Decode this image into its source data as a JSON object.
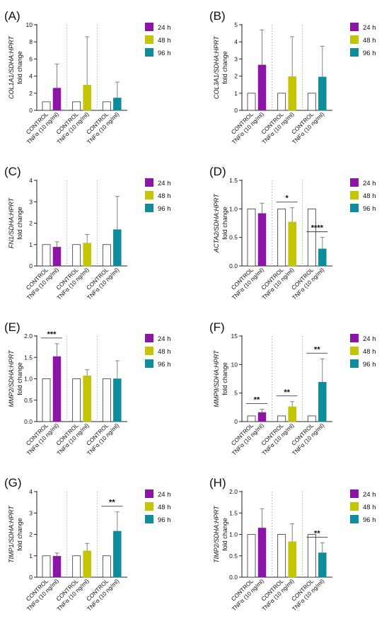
{
  "legend": [
    {
      "label": "24 h",
      "color": "#8b16a5"
    },
    {
      "label": "48 h",
      "color": "#c2c404"
    },
    {
      "label": "96 h",
      "color": "#0e8c9c"
    }
  ],
  "group_labels": [
    "CONTROL",
    "TNFα (10 ng/ml)"
  ],
  "colors": {
    "control_fill": "#ffffff",
    "bar_stroke": "#333333",
    "divider": "#b5b5b5"
  },
  "chart_data": [
    {
      "type": "bar",
      "panel_label": "(A)",
      "ylabel_gene": "COL1A1/SDHA:HPRT",
      "ylabel_unit": "fold change",
      "ylim": [
        0,
        10
      ],
      "yticks": [
        0,
        2,
        4,
        6,
        8,
        10
      ],
      "groups": [
        {
          "time": "24 h",
          "control": 1.0,
          "tnf": 2.6,
          "tnf_err": 2.8,
          "sig": ""
        },
        {
          "time": "48 h",
          "control": 1.0,
          "tnf": 2.95,
          "tnf_err": 5.65,
          "sig": ""
        },
        {
          "time": "96 h",
          "control": 1.0,
          "tnf": 1.45,
          "tnf_err": 1.85,
          "sig": ""
        }
      ]
    },
    {
      "type": "bar",
      "panel_label": "(B)",
      "ylabel_gene": "COL3A1/SDHA:HPRT",
      "ylabel_unit": "fold change",
      "ylim": [
        0,
        5
      ],
      "yticks": [
        0,
        1,
        2,
        3,
        4,
        5
      ],
      "groups": [
        {
          "time": "24 h",
          "control": 1.0,
          "tnf": 2.65,
          "tnf_err": 2.05,
          "sig": ""
        },
        {
          "time": "48 h",
          "control": 1.0,
          "tnf": 1.97,
          "tnf_err": 2.33,
          "sig": ""
        },
        {
          "time": "96 h",
          "control": 1.0,
          "tnf": 1.95,
          "tnf_err": 1.8,
          "sig": ""
        }
      ]
    },
    {
      "type": "bar",
      "panel_label": "(C)",
      "ylabel_gene": "FN1/SDHA:HPRT",
      "ylabel_unit": "fold change",
      "ylim": [
        0,
        4
      ],
      "yticks": [
        0,
        1,
        2,
        3,
        4
      ],
      "groups": [
        {
          "time": "24 h",
          "control": 1.0,
          "tnf": 0.88,
          "tnf_err": 0.25,
          "sig": ""
        },
        {
          "time": "48 h",
          "control": 1.0,
          "tnf": 1.07,
          "tnf_err": 0.4,
          "sig": ""
        },
        {
          "time": "96 h",
          "control": 1.0,
          "tnf": 1.7,
          "tnf_err": 1.55,
          "sig": ""
        }
      ]
    },
    {
      "type": "bar",
      "panel_label": "(D)",
      "ylabel_gene": "ACTA2/SDHA:HPRT",
      "ylabel_unit": "fold change",
      "ylim": [
        0,
        1.5
      ],
      "yticks": [
        "0.0",
        "0.5",
        "1.0",
        "1.5"
      ],
      "groups": [
        {
          "time": "24 h",
          "control": 1.0,
          "tnf": 0.92,
          "tnf_err": 0.18,
          "sig": ""
        },
        {
          "time": "48 h",
          "control": 1.0,
          "tnf": 0.77,
          "tnf_err": 0.25,
          "sig": "*"
        },
        {
          "time": "96 h",
          "control": 1.0,
          "tnf": 0.3,
          "tnf_err": 0.2,
          "sig": "****"
        }
      ]
    },
    {
      "type": "bar",
      "panel_label": "(E)",
      "ylabel_gene": "MMP2/SDHA:HPRT",
      "ylabel_unit": "fold change",
      "ylim": [
        0,
        2.0
      ],
      "yticks": [
        "0.0",
        "0.5",
        "1.0",
        "1.5",
        "2.0"
      ],
      "groups": [
        {
          "time": "24 h",
          "control": 1.0,
          "tnf": 1.52,
          "tnf_err": 0.3,
          "sig": "***"
        },
        {
          "time": "48 h",
          "control": 1.0,
          "tnf": 1.07,
          "tnf_err": 0.14,
          "sig": ""
        },
        {
          "time": "96 h",
          "control": 1.0,
          "tnf": 1.0,
          "tnf_err": 0.42,
          "sig": ""
        }
      ]
    },
    {
      "type": "bar",
      "panel_label": "(F)",
      "ylabel_gene": "MMP9/SDHA:HPRT",
      "ylabel_unit": "fold change",
      "ylim": [
        0,
        15
      ],
      "yticks": [
        0,
        5,
        10,
        15
      ],
      "groups": [
        {
          "time": "24 h",
          "control": 1.0,
          "tnf": 1.6,
          "tnf_err": 0.55,
          "sig": "**"
        },
        {
          "time": "48 h",
          "control": 1.0,
          "tnf": 2.6,
          "tnf_err": 0.9,
          "sig": "**"
        },
        {
          "time": "96 h",
          "control": 1.0,
          "tnf": 6.9,
          "tnf_err": 4.1,
          "sig": "**"
        }
      ]
    },
    {
      "type": "bar",
      "panel_label": "(G)",
      "ylabel_gene": "TIMP1/SDHA:HPRT",
      "ylabel_unit": "fold change",
      "ylim": [
        0,
        4
      ],
      "yticks": [
        0,
        1,
        2,
        3,
        4
      ],
      "groups": [
        {
          "time": "24 h",
          "control": 1.0,
          "tnf": 0.98,
          "tnf_err": 0.15,
          "sig": ""
        },
        {
          "time": "48 h",
          "control": 1.0,
          "tnf": 1.23,
          "tnf_err": 0.35,
          "sig": ""
        },
        {
          "time": "96 h",
          "control": 1.0,
          "tnf": 2.15,
          "tnf_err": 0.9,
          "sig": "**"
        }
      ]
    },
    {
      "type": "bar",
      "panel_label": "(H)",
      "ylabel_gene": "TIMP2/SDHA:HPRT",
      "ylabel_unit": "fold change",
      "ylim": [
        0,
        2.0
      ],
      "yticks": [
        "0.0",
        "0.5",
        "1.0",
        "1.5",
        "2.0"
      ],
      "groups": [
        {
          "time": "24 h",
          "control": 1.0,
          "tnf": 1.15,
          "tnf_err": 0.45,
          "sig": ""
        },
        {
          "time": "48 h",
          "control": 1.0,
          "tnf": 0.83,
          "tnf_err": 0.42,
          "sig": ""
        },
        {
          "time": "96 h",
          "control": 1.0,
          "tnf": 0.57,
          "tnf_err": 0.23,
          "sig": "**"
        }
      ]
    }
  ]
}
